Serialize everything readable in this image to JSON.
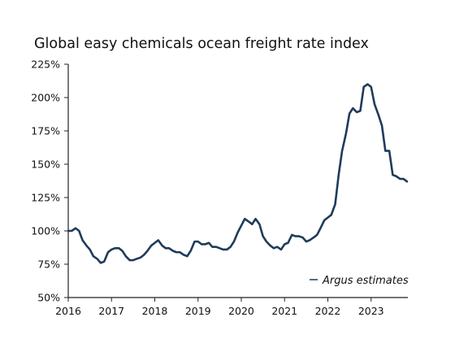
{
  "chart_data": {
    "type": "line",
    "title": "Global easy chemicals ocean freight rate index",
    "xlabel": "",
    "ylabel": "",
    "x_ticks": [
      "2016",
      "2017",
      "2018",
      "2019",
      "2020",
      "2021",
      "2022",
      "2023"
    ],
    "y_ticks": [
      "50%",
      "75%",
      "100%",
      "125%",
      "150%",
      "175%",
      "200%",
      "225%"
    ],
    "xlim": [
      2016.0,
      2023.85
    ],
    "ylim": [
      50,
      225
    ],
    "grid": false,
    "legend": {
      "position": "bottom-right",
      "entries": [
        "Argus estimates"
      ]
    },
    "colors": {
      "line": "#1f3b5a",
      "axis": "#222222"
    },
    "series": [
      {
        "name": "Argus estimates",
        "x": [
          2016.0,
          2016.08,
          2016.17,
          2016.25,
          2016.33,
          2016.42,
          2016.5,
          2016.58,
          2016.67,
          2016.75,
          2016.83,
          2016.92,
          2017.0,
          2017.08,
          2017.17,
          2017.25,
          2017.33,
          2017.42,
          2017.5,
          2017.58,
          2017.67,
          2017.75,
          2017.83,
          2017.92,
          2018.0,
          2018.08,
          2018.17,
          2018.25,
          2018.33,
          2018.42,
          2018.5,
          2018.58,
          2018.67,
          2018.75,
          2018.83,
          2018.92,
          2019.0,
          2019.08,
          2019.17,
          2019.25,
          2019.33,
          2019.42,
          2019.5,
          2019.58,
          2019.67,
          2019.75,
          2019.83,
          2019.92,
          2020.0,
          2020.08,
          2020.17,
          2020.25,
          2020.33,
          2020.42,
          2020.5,
          2020.58,
          2020.67,
          2020.75,
          2020.83,
          2020.92,
          2021.0,
          2021.08,
          2021.17,
          2021.25,
          2021.33,
          2021.42,
          2021.5,
          2021.58,
          2021.67,
          2021.75,
          2021.83,
          2021.92,
          2022.0,
          2022.08,
          2022.17,
          2022.25,
          2022.33,
          2022.42,
          2022.5,
          2022.58,
          2022.67,
          2022.75,
          2022.83,
          2022.92,
          2023.0,
          2023.08,
          2023.17,
          2023.25,
          2023.33,
          2023.42,
          2023.5,
          2023.58,
          2023.67,
          2023.75,
          2023.83
        ],
        "y": [
          100,
          100,
          102,
          100,
          93,
          89,
          86,
          81,
          79,
          76,
          77,
          84,
          86,
          87,
          87,
          85,
          81,
          78,
          78,
          79,
          80,
          82,
          85,
          89,
          91,
          93,
          89,
          87,
          87,
          85,
          84,
          84,
          82,
          81,
          85,
          92,
          92,
          90,
          90,
          91,
          88,
          88,
          87,
          86,
          86,
          88,
          92,
          99,
          104,
          109,
          107,
          105,
          109,
          105,
          96,
          92,
          89,
          87,
          88,
          86,
          90,
          91,
          97,
          96,
          96,
          95,
          92,
          93,
          95,
          97,
          102,
          108,
          110,
          112,
          120,
          142,
          160,
          173,
          188,
          192,
          189,
          190,
          208,
          210,
          208,
          195,
          187,
          179,
          160,
          160,
          142,
          141,
          139,
          139,
          137
        ]
      }
    ]
  }
}
